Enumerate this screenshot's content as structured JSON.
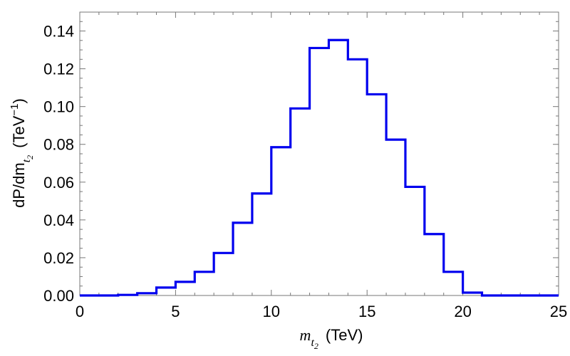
{
  "chart_data": {
    "type": "histogram",
    "bin_edges": [
      0,
      1,
      2,
      3,
      4,
      5,
      6,
      7,
      8,
      9,
      10,
      11,
      12,
      13,
      14,
      15,
      16,
      17,
      18,
      19,
      20,
      21,
      22,
      23,
      24,
      25
    ],
    "values": [
      0.0,
      0.0,
      0.0003,
      0.0012,
      0.0042,
      0.0072,
      0.0125,
      0.0225,
      0.0385,
      0.054,
      0.0785,
      0.099,
      0.131,
      0.1352,
      0.125,
      0.1065,
      0.0825,
      0.0575,
      0.0325,
      0.0125,
      0.0015,
      0.0,
      0.0,
      0.0,
      0.0
    ],
    "xlim": [
      0,
      25
    ],
    "ylim": [
      0,
      0.15
    ],
    "x_ticks": [
      "0",
      "5",
      "10",
      "15",
      "20",
      "25"
    ],
    "y_ticks": [
      "0.00",
      "0.02",
      "0.04",
      "0.06",
      "0.08",
      "0.10",
      "0.12",
      "0.14"
    ],
    "xlabel": {
      "symbol": "m",
      "subscript": "t",
      "subscript_index": "2",
      "unit": "(TeV)"
    },
    "ylabel": {
      "prefix": "dP/dm",
      "subscript": "t",
      "subscript_index": "2",
      "unit_open": "(TeV",
      "unit_power": "−1",
      "unit_close": ")"
    },
    "series_color": "#0000ee",
    "grid": false,
    "legend": "none"
  }
}
